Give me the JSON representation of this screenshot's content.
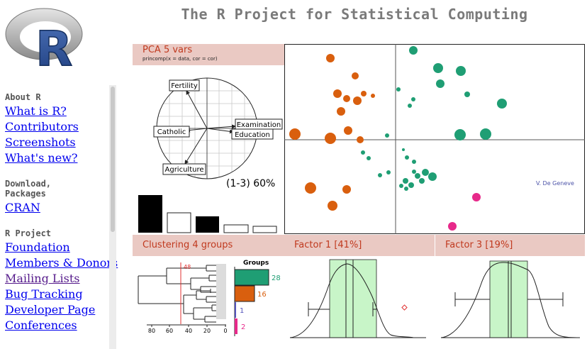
{
  "page": {
    "title": "The R Project for Statistical Computing"
  },
  "logo": {
    "letter": "R"
  },
  "sidebar": {
    "sections": [
      {
        "heading": "About R",
        "links": [
          "What is R?",
          "Contributors",
          "Screenshots",
          "What's new?"
        ]
      },
      {
        "heading": "Download, Packages",
        "links": [
          "CRAN"
        ]
      },
      {
        "heading": "R Project",
        "links": [
          "Foundation",
          "Members & Donors",
          "Mailing Lists",
          "Bug Tracking",
          "Developer Page",
          "Conferences"
        ]
      }
    ]
  },
  "pca": {
    "label": "PCA  5 vars",
    "subtitle": "princomp(x = data, cor = cor)",
    "variables": [
      "Fertility",
      "Catholic",
      "Examination",
      "Education",
      "Agriculture"
    ],
    "variance_label": "(1-3) 60%",
    "credit": "V. De Geneve"
  },
  "clustering": {
    "label": "Clustering  4 groups",
    "cut_value": "48",
    "axis_ticks": [
      "80",
      "60",
      "40",
      "20",
      "0"
    ],
    "groups_title": "Groups",
    "group_counts": [
      {
        "count": "28",
        "color": "#1f9e74"
      },
      {
        "count": "16",
        "color": "#d95f0e"
      },
      {
        "count": "1",
        "color": "#5555bb"
      },
      {
        "count": "2",
        "color": "#e7298a"
      }
    ]
  },
  "factor1": {
    "label": "Factor 1 [41%]"
  },
  "factor3": {
    "label": "Factor 3 [19%]"
  },
  "colors": {
    "green": "#1f9e74",
    "orange": "#d95f0e",
    "magenta": "#e7298a",
    "header_bg": "#eac9c3",
    "header_text": "#c0391e"
  }
}
